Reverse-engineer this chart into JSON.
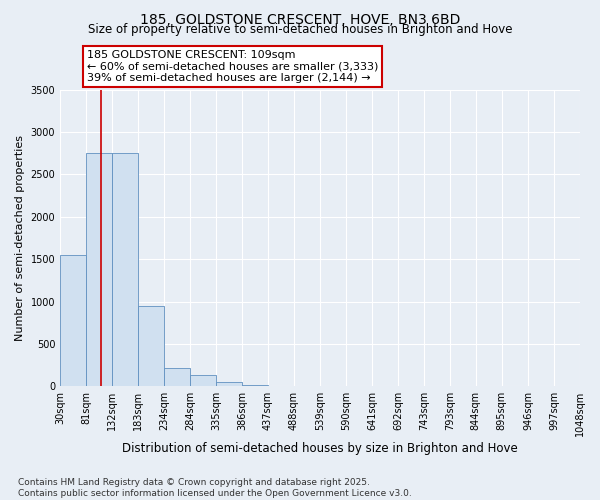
{
  "title": "185, GOLDSTONE CRESCENT, HOVE, BN3 6BD",
  "subtitle": "Size of property relative to semi-detached houses in Brighton and Hove",
  "xlabel": "Distribution of semi-detached houses by size in Brighton and Hove",
  "ylabel": "Number of semi-detached properties",
  "bin_labels": [
    "30sqm",
    "81sqm",
    "132sqm",
    "183sqm",
    "234sqm",
    "284sqm",
    "335sqm",
    "386sqm",
    "437sqm",
    "488sqm",
    "539sqm",
    "590sqm",
    "641sqm",
    "692sqm",
    "743sqm",
    "793sqm",
    "844sqm",
    "895sqm",
    "946sqm",
    "997sqm",
    "1048sqm"
  ],
  "bin_edges": [
    30,
    81,
    132,
    183,
    234,
    284,
    335,
    386,
    437,
    488,
    539,
    590,
    641,
    692,
    743,
    793,
    844,
    895,
    946,
    997,
    1048
  ],
  "bar_heights": [
    1550,
    2750,
    2750,
    950,
    220,
    130,
    50,
    20,
    5,
    2,
    1,
    0,
    0,
    0,
    0,
    0,
    0,
    0,
    0,
    0
  ],
  "bar_color": "#d0e0f0",
  "bar_edgecolor": "#6090c0",
  "ylim": [
    0,
    3500
  ],
  "yticks": [
    0,
    500,
    1000,
    1500,
    2000,
    2500,
    3000,
    3500
  ],
  "property_size": 109,
  "vline_color": "#cc0000",
  "annotation_text": "185 GOLDSTONE CRESCENT: 109sqm\n← 60% of semi-detached houses are smaller (3,333)\n39% of semi-detached houses are larger (2,144) →",
  "annotation_box_facecolor": "#ffffff",
  "annotation_box_edgecolor": "#cc0000",
  "footnote": "Contains HM Land Registry data © Crown copyright and database right 2025.\nContains public sector information licensed under the Open Government Licence v3.0.",
  "bg_color": "#e8eef5",
  "plot_bg_color": "#e8eef5",
  "grid_color": "#ffffff",
  "title_fontsize": 10,
  "subtitle_fontsize": 8.5,
  "ylabel_fontsize": 8,
  "xlabel_fontsize": 8.5,
  "tick_fontsize": 7,
  "footnote_fontsize": 6.5,
  "annotation_fontsize": 8
}
